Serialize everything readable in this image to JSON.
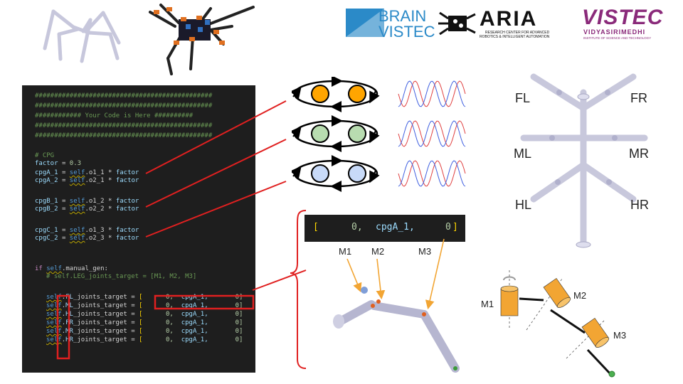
{
  "logos": {
    "brain_top": "BRAIN",
    "brain_bottom": "VISTEC",
    "aria": "ARIA",
    "aria_sub1": "RESEARCH CENTER FOR ADVANCED",
    "aria_sub2": "ROBOTICS & INTELLIGENT AUTOMATION",
    "vistec": "VISTEC",
    "vistec_sub1": "VIDYASIRIMEDHI",
    "vistec_sub2": "INSTITUTE OF SCIENCE AND TECHNOLOGY"
  },
  "code": {
    "hash_line": "##############################################",
    "your_code": "############ Your Code is Here ##########",
    "cpg_comment": "# CPG",
    "factor_name": "factor",
    "factor_value": "0.3",
    "cpg_lines": [
      {
        "lhs": "cpgA_1",
        "var": "o1_1"
      },
      {
        "lhs": "cpgA_2",
        "var": "o2_1"
      },
      {
        "lhs": "cpgB_1",
        "var": "o1_2"
      },
      {
        "lhs": "cpgB_2",
        "var": "o2_2"
      },
      {
        "lhs": "cpgC_1",
        "var": "o1_3"
      },
      {
        "lhs": "cpgC_2",
        "var": "o2_3"
      }
    ],
    "if_kw": "if",
    "self_kw": "self",
    "manual_gen": ".manual_gen:",
    "leg_comment": "# self.LEG_joints_target = [M1, M2, M3]",
    "times": "*",
    "assign": "=",
    "joint_rows": [
      "FL",
      "ML",
      "HL",
      "FR",
      "MR",
      "HR"
    ],
    "joint_suffix": "_joints_target",
    "zero": "0,",
    "cpg": "cpgA_1,",
    "last": "0]",
    "open": "["
  },
  "snippet": {
    "open": "[",
    "zero1": "0,",
    "cpg": "cpgA_1,",
    "zero2": "0",
    "close": "]"
  },
  "motor_labels": {
    "m1": "M1",
    "m2": "M2",
    "m3": "M3"
  },
  "robot_legs": {
    "fl": "FL",
    "fr": "FR",
    "ml": "ML",
    "mr": "MR",
    "hl": "HL",
    "hr": "HR"
  },
  "diagram_labels": {
    "m1": "M1",
    "m2": "M2",
    "m3": "M3"
  },
  "colors": {
    "oscA": "#ffa500",
    "oscB": "#b8dcb0",
    "oscC": "#c8daf8",
    "red": "#e02020",
    "orange": "#f2a533",
    "vistec_purple": "#8a2a7a",
    "brain_blue": "#2b8ac8"
  }
}
